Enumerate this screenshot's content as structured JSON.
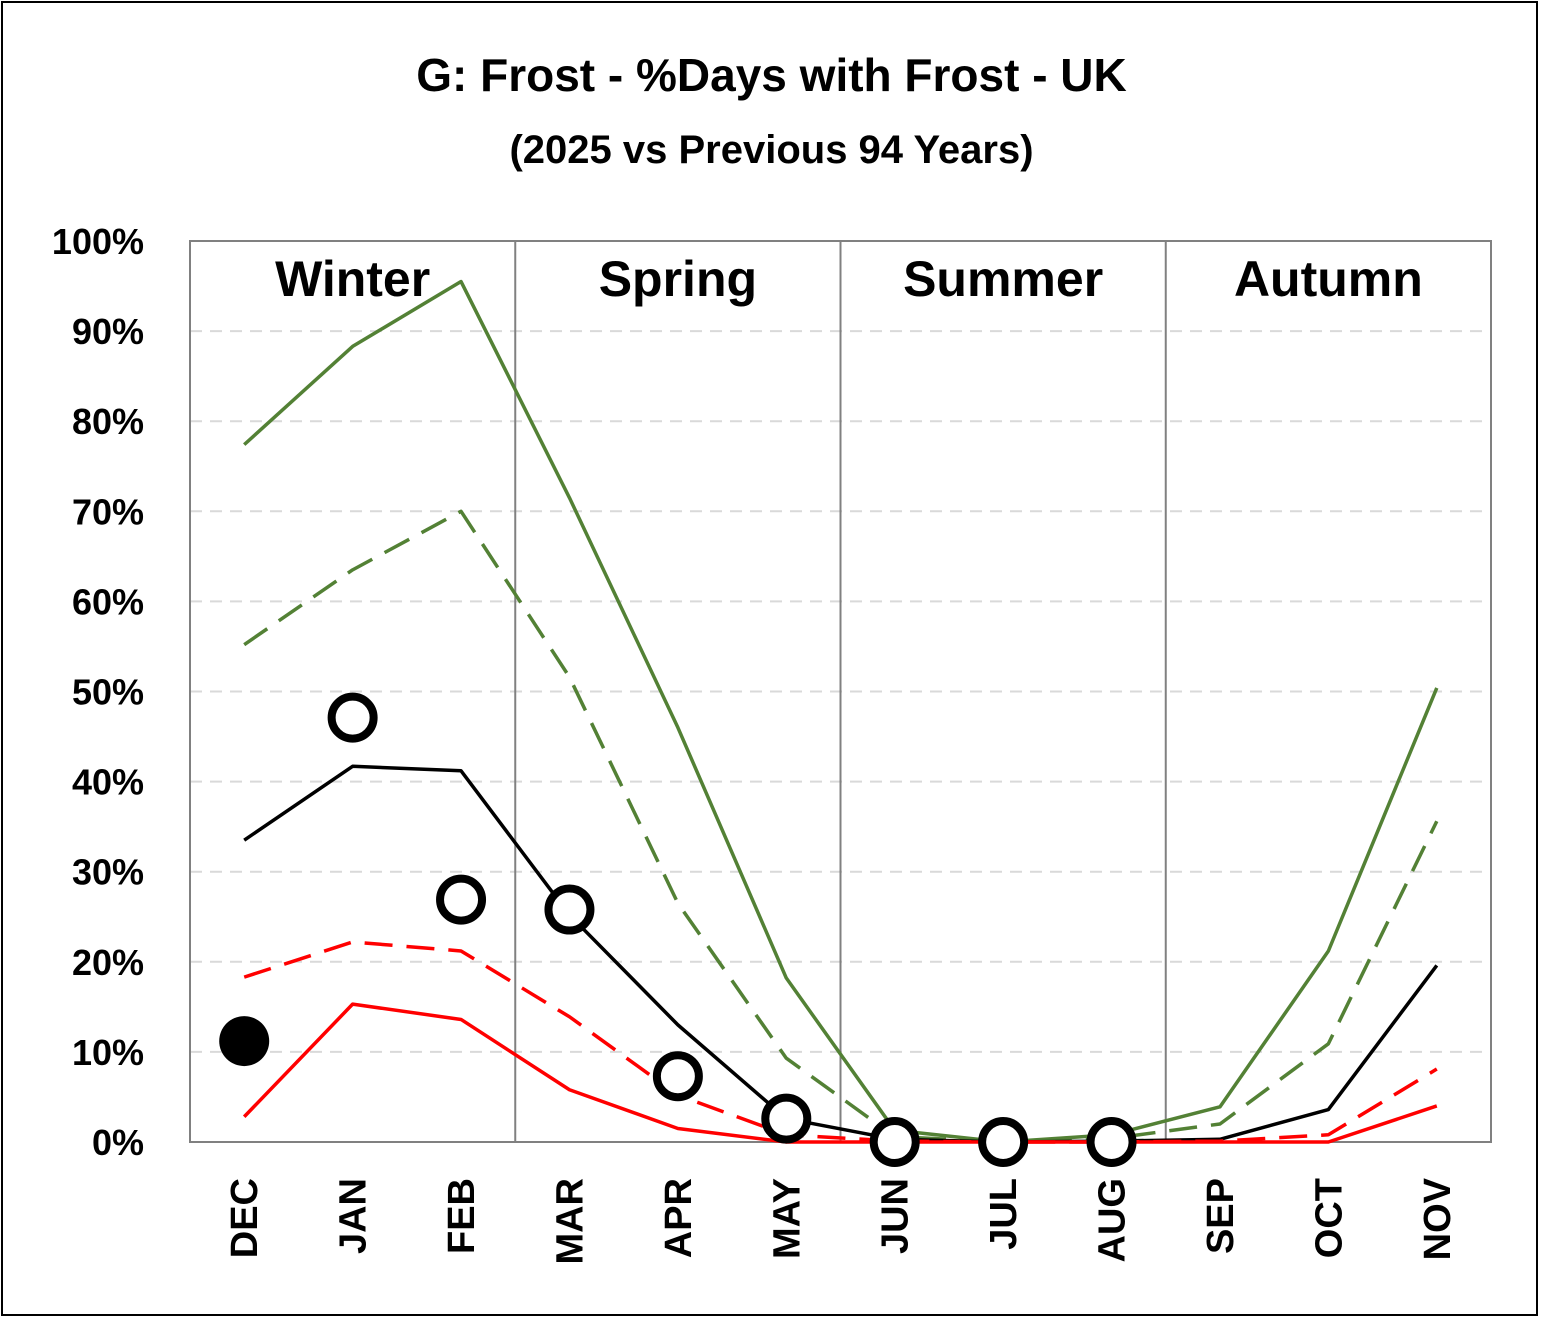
{
  "chart_data": {
    "type": "line",
    "title": "G: Frost - %Days with Frost - UK",
    "subtitle": "(2025 vs Previous 94 Years)",
    "xlabel": "",
    "ylabel": "",
    "categories": [
      "DEC",
      "JAN",
      "FEB",
      "MAR",
      "APR",
      "MAY",
      "JUN",
      "JUL",
      "AUG",
      "SEP",
      "OCT",
      "NOV"
    ],
    "ylim": [
      0,
      100
    ],
    "yticks": [
      "0%",
      "10%",
      "20%",
      "30%",
      "40%",
      "50%",
      "60%",
      "70%",
      "80%",
      "90%",
      "100%"
    ],
    "grid": true,
    "legend": "none",
    "seasons": [
      {
        "label": "Winter",
        "start": 0,
        "end": 2
      },
      {
        "label": "Spring",
        "start": 3,
        "end": 5
      },
      {
        "label": "Summer",
        "start": 6,
        "end": 8
      },
      {
        "label": "Autumn",
        "start": 9,
        "end": 11
      }
    ],
    "series": [
      {
        "values": [
          77.4,
          88.3,
          95.5,
          71.5,
          46.0,
          18.2,
          1.3,
          0.0,
          0.8,
          3.9,
          21.2,
          50.4
        ],
        "color": "#538135",
        "style": "solid"
      },
      {
        "values": [
          55.2,
          63.5,
          70.0,
          51.6,
          26.5,
          9.3,
          0.6,
          0.0,
          0.4,
          2.0,
          10.9,
          35.6
        ],
        "color": "#538135",
        "style": "dashed"
      },
      {
        "values": [
          33.5,
          41.7,
          41.2,
          25.2,
          13.0,
          2.6,
          0.3,
          0.0,
          0.1,
          0.3,
          3.6,
          19.6
        ],
        "color": "#000000",
        "style": "solid"
      },
      {
        "values": [
          18.3,
          22.2,
          21.2,
          13.9,
          5.2,
          0.8,
          0.1,
          0.0,
          0.0,
          0.1,
          0.8,
          8.1
        ],
        "color": "#ff0000",
        "style": "dashed"
      },
      {
        "values": [
          2.8,
          15.3,
          13.6,
          5.8,
          1.5,
          0.0,
          0.0,
          0.0,
          0.0,
          0.0,
          0.0,
          4.0
        ],
        "color": "#ff0000",
        "style": "solid"
      }
    ],
    "markers": [
      {
        "category": "DEC",
        "value": 11.2,
        "filled": true
      },
      {
        "category": "JAN",
        "value": 47.1,
        "filled": false
      },
      {
        "category": "FEB",
        "value": 26.9,
        "filled": false
      },
      {
        "category": "MAR",
        "value": 25.8,
        "filled": false
      },
      {
        "category": "APR",
        "value": 7.3,
        "filled": false
      },
      {
        "category": "MAY",
        "value": 2.6,
        "filled": false
      },
      {
        "category": "JUN",
        "value": 0.0,
        "filled": false
      },
      {
        "category": "JUL",
        "value": 0.0,
        "filled": false
      },
      {
        "category": "AUG",
        "value": 0.0,
        "filled": false
      }
    ]
  }
}
